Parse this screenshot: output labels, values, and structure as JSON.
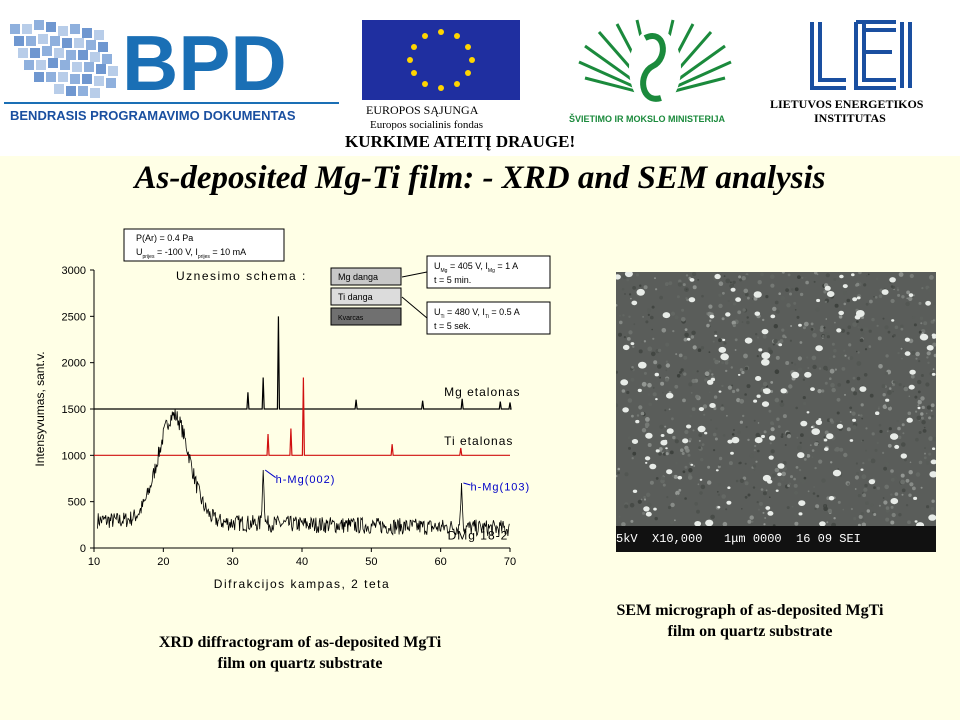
{
  "header": {
    "bpd_logo_text": "BPD",
    "bpd_subtitle": "BENDRASIS PROGRAMAVIMO DOKUMENTAS",
    "eu_line1": "EUROPOS SĄJUNGA",
    "eu_line2": "Europos socialinis fondas",
    "slogan": "KURKIME ATEITĮ DRAUGE!",
    "ministry": "ŠVIETIMO IR MOKSLO MINISTERIJA",
    "lei_line1": "LIETUVOS ENERGETIKOS",
    "lei_line2": "INSTITUTAS"
  },
  "title": "As-deposited Mg-Ti film: - XRD and SEM analysis",
  "captions": {
    "xrd_line1": "XRD diffractogram of as-deposited MgTi",
    "xrd_line2": "film on quartz substrate",
    "sem_line1": "SEM micrograph of as-deposited MgTi",
    "sem_line2": "film on quartz substrate"
  },
  "sem": {
    "databar": "5kV  X10,000   1μm 0000  16 09 SEI"
  },
  "colors": {
    "header_bg": "#ffffff",
    "page_bg": "#ffffe6",
    "bpd_blue": "#1a6fb5",
    "eu_blue": "#1f2fa0",
    "eu_star": "#ffd500",
    "ministry_green": "#1b8a3c",
    "lei_blue": "#1a4fa0",
    "ti_reference": "#d01010",
    "mg_reference": "#000000",
    "sample": "#000000",
    "annot_blue": "#0000c8"
  },
  "chart_data": {
    "type": "line",
    "xlabel": "Difrakcijos kampas, 2 teta",
    "ylabel": "Intensyvumas, sant.v.",
    "xlim": [
      10,
      70
    ],
    "ylim": [
      0,
      3000
    ],
    "xticks": [
      10,
      20,
      30,
      40,
      50,
      60,
      70
    ],
    "yticks": [
      0,
      500,
      1000,
      1500,
      2000,
      2500,
      3000
    ],
    "grid": false,
    "inset_title": "Uznesimo schema :",
    "deposition_params": {
      "line1": "P(Ar) = 0.4 Pa",
      "line2": "U",
      "line2_sub": "prijes",
      "line2_mid": " = -100 V, I",
      "line2_sub2": "prijes",
      "line2_end": " = 10 mA"
    },
    "layers": [
      "Mg danga",
      "Ti danga",
      "Kvarcas"
    ],
    "mg_params": {
      "line1": "U",
      "line1_sub": "Mg",
      "line1_mid": " = 405 V, I",
      "line1_sub2": "Mg",
      "line1_end": " = 1 A",
      "line2": "t = 5 min."
    },
    "ti_params": {
      "line1": "U",
      "line1_sub": "Ti",
      "line1_mid": " = 480 V, I",
      "line1_sub2": "Ti",
      "line1_end": " = 0.5 A",
      "line2": "t = 5 sek."
    },
    "series": [
      {
        "name": "Mg etalonas",
        "baseline": 1500,
        "peaks": [
          [
            32.2,
            1680
          ],
          [
            34.4,
            1840
          ],
          [
            36.6,
            2500
          ],
          [
            47.8,
            1600
          ],
          [
            57.4,
            1590
          ],
          [
            63.1,
            1610
          ],
          [
            68.6,
            1580
          ],
          [
            70.0,
            1570
          ]
        ]
      },
      {
        "name": "Ti etalonas",
        "baseline": 1000,
        "peaks": [
          [
            35.1,
            1230
          ],
          [
            38.4,
            1290
          ],
          [
            40.2,
            1840
          ],
          [
            53.0,
            1120
          ],
          [
            62.9,
            1080
          ]
        ]
      },
      {
        "name": "DMg 18-2",
        "hump_center": 21.5,
        "hump_height": 1150,
        "peaks": [
          [
            34.4,
            820
          ],
          [
            63.0,
            680
          ]
        ]
      }
    ],
    "annotations": [
      {
        "text": "h-Mg(002)",
        "x": 34.4,
        "y": 820
      },
      {
        "text": "h-Mg(103)",
        "x": 63.0,
        "y": 680
      }
    ]
  }
}
